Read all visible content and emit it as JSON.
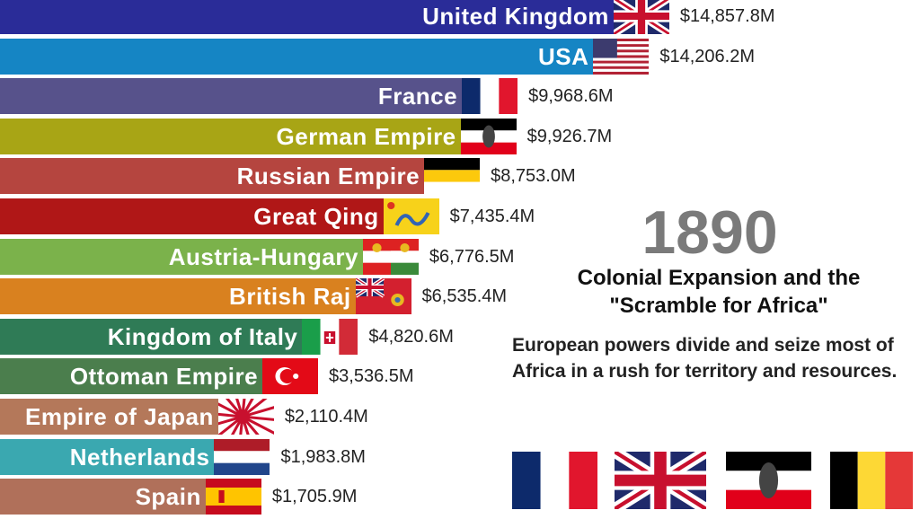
{
  "chart_data": {
    "type": "bar",
    "orientation": "horizontal",
    "sorted": "descending",
    "value_format": "$#,###.#M",
    "categories": [
      "United Kingdom",
      "USA",
      "France",
      "German Empire",
      "Russian Empire",
      "Great Qing",
      "Austria-Hungary",
      "British Raj",
      "Kingdom of Italy",
      "Ottoman Empire",
      "Empire of Japan",
      "Netherlands",
      "Spain"
    ],
    "values": [
      14857.8,
      14206.2,
      9968.6,
      9926.7,
      8753.0,
      7435.4,
      6776.5,
      6535.4,
      4820.6,
      3536.5,
      2110.4,
      1983.8,
      1705.9
    ],
    "value_labels": [
      "$14,857.8M",
      "$14,206.2M",
      "$9,968.6M",
      "$9,926.7M",
      "$8,753.0M",
      "$7,435.4M",
      "$6,776.5M",
      "$6,535.4M",
      "$4,820.6M",
      "$3,536.5M",
      "$2,110.4M",
      "$1,983.8M",
      "$1,705.9M"
    ],
    "colors": [
      "#2a2c98",
      "#1585c4",
      "#57528b",
      "#a8a515",
      "#b5453f",
      "#b01717",
      "#7bb24b",
      "#d9811f",
      "#2f7b56",
      "#4b7e4d",
      "#b4785a",
      "#3aa8b0",
      "#b0705a"
    ],
    "flags": [
      "uk-flag",
      "usa-flag",
      "france-flag",
      "german-empire-flag",
      "russian-empire-flag",
      "qing-flag",
      "austria-hungary-flag",
      "british-raj-flag",
      "italy-flag",
      "ottoman-flag",
      "japan-flag",
      "netherlands-flag",
      "spain-flag"
    ],
    "grid": false
  },
  "year": "1890",
  "event": {
    "title_line1": "Colonial Expansion and the",
    "title_line2": "\"Scramble for Africa\"",
    "description": "European powers divide and seize most of Africa in a rush for territory and resources."
  },
  "event_flags": [
    "france-flag",
    "uk-flag",
    "german-empire-flag",
    "belgium-flag"
  ]
}
